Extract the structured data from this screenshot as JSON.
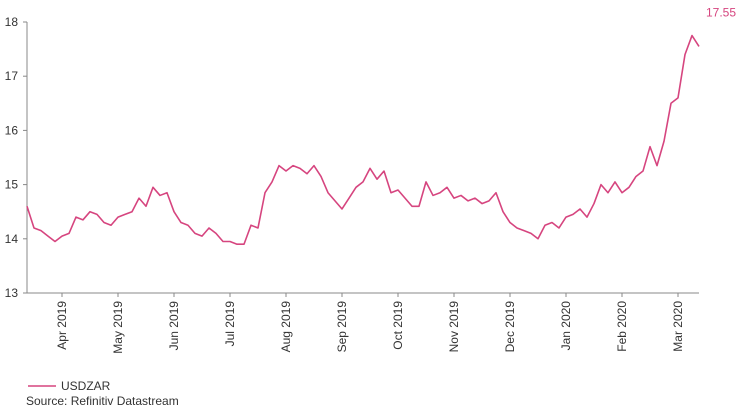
{
  "chart_data": {
    "type": "line",
    "categories": [
      null,
      null,
      null,
      null,
      null,
      "Apr 2019",
      null,
      null,
      null,
      null,
      null,
      null,
      null,
      "May 2019",
      null,
      null,
      null,
      null,
      null,
      null,
      null,
      "Jun 2019",
      null,
      null,
      null,
      null,
      null,
      null,
      null,
      "Jul 2019",
      null,
      null,
      null,
      null,
      null,
      null,
      null,
      "Aug 2019",
      null,
      null,
      null,
      null,
      null,
      null,
      null,
      "Sep 2019",
      null,
      null,
      null,
      null,
      null,
      null,
      null,
      "Oct 2019",
      null,
      null,
      null,
      null,
      null,
      null,
      null,
      "Nov 2019",
      null,
      null,
      null,
      null,
      null,
      null,
      null,
      "Dec 2019",
      null,
      null,
      null,
      null,
      null,
      null,
      null,
      "Jan 2020",
      null,
      null,
      null,
      null,
      null,
      null,
      null,
      "Feb 2020",
      null,
      null,
      null,
      null,
      null,
      null,
      null,
      "Mar 2020",
      null,
      null,
      null
    ],
    "series": [
      {
        "name": "USDZAR",
        "color": "#d6457f",
        "values": [
          14.6,
          14.2,
          14.15,
          14.05,
          13.95,
          14.05,
          14.1,
          14.4,
          14.35,
          14.5,
          14.45,
          14.3,
          14.25,
          14.4,
          14.45,
          14.5,
          14.75,
          14.6,
          14.95,
          14.8,
          14.85,
          14.5,
          14.3,
          14.25,
          14.1,
          14.05,
          14.2,
          14.1,
          13.95,
          13.95,
          13.9,
          13.9,
          14.25,
          14.2,
          14.85,
          15.05,
          15.35,
          15.25,
          15.35,
          15.3,
          15.2,
          15.35,
          15.15,
          14.85,
          14.7,
          14.55,
          14.75,
          14.95,
          15.05,
          15.3,
          15.1,
          15.25,
          14.85,
          14.9,
          14.75,
          14.6,
          14.6,
          15.05,
          14.8,
          14.85,
          14.95,
          14.75,
          14.8,
          14.7,
          14.75,
          14.65,
          14.7,
          14.85,
          14.5,
          14.3,
          14.2,
          14.15,
          14.1,
          14.0,
          14.25,
          14.3,
          14.2,
          14.4,
          14.45,
          14.55,
          14.4,
          14.65,
          15.0,
          14.85,
          15.05,
          14.85,
          14.95,
          15.15,
          15.25,
          15.7,
          15.35,
          15.8,
          16.5,
          16.6,
          17.4,
          17.75,
          17.55
        ]
      }
    ],
    "ylim": [
      13,
      18
    ],
    "yticks": [
      13,
      14,
      15,
      16,
      17,
      18
    ],
    "grid": false,
    "legend": "bottom-left",
    "source": "Source: Refinitiv Datastream"
  }
}
